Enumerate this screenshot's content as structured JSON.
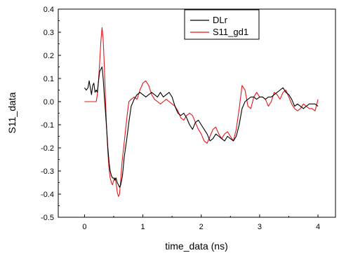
{
  "chart_data": {
    "type": "line",
    "xlabel": "time_data (ns)",
    "ylabel": "S11_data",
    "xlim": [
      -0.45,
      4.3
    ],
    "ylim": [
      -0.5,
      0.4
    ],
    "xticks": [
      0,
      1,
      2,
      3,
      4
    ],
    "yticks": [
      -0.5,
      -0.4,
      -0.3,
      -0.2,
      -0.1,
      0.0,
      0.1,
      0.2,
      0.3,
      0.4
    ],
    "xtick_labels": [
      "0",
      "1",
      "2",
      "3",
      "4"
    ],
    "ytick_labels": [
      "-0.5",
      "-0.4",
      "-0.3",
      "-0.2",
      "-0.1",
      "0.0",
      "0.1",
      "0.2",
      "0.3",
      "0.4"
    ],
    "grid": false,
    "legend_position": "top-right",
    "series": [
      {
        "name": "DLr",
        "color": "#000000",
        "x": [
          0.0,
          0.03,
          0.06,
          0.08,
          0.1,
          0.12,
          0.14,
          0.16,
          0.18,
          0.2,
          0.22,
          0.24,
          0.26,
          0.28,
          0.3,
          0.32,
          0.34,
          0.36,
          0.38,
          0.4,
          0.42,
          0.44,
          0.46,
          0.48,
          0.5,
          0.52,
          0.54,
          0.56,
          0.58,
          0.6,
          0.62,
          0.65,
          0.68,
          0.72,
          0.76,
          0.8,
          0.85,
          0.9,
          0.95,
          1.0,
          1.05,
          1.1,
          1.15,
          1.2,
          1.25,
          1.3,
          1.35,
          1.4,
          1.45,
          1.5,
          1.55,
          1.6,
          1.65,
          1.7,
          1.75,
          1.8,
          1.85,
          1.9,
          1.95,
          2.0,
          2.05,
          2.1,
          2.15,
          2.2,
          2.25,
          2.3,
          2.35,
          2.4,
          2.45,
          2.5,
          2.55,
          2.6,
          2.65,
          2.7,
          2.75,
          2.8,
          2.85,
          2.9,
          2.95,
          3.0,
          3.05,
          3.1,
          3.15,
          3.2,
          3.25,
          3.3,
          3.35,
          3.4,
          3.45,
          3.5,
          3.55,
          3.6,
          3.65,
          3.7,
          3.75,
          3.8,
          3.85,
          3.9,
          3.95,
          4.0
        ],
        "y": [
          0.06,
          0.05,
          0.06,
          0.09,
          0.06,
          0.03,
          0.07,
          0.08,
          0.04,
          0.05,
          0.04,
          0.09,
          0.13,
          0.14,
          0.15,
          0.1,
          0.02,
          -0.05,
          -0.12,
          -0.2,
          -0.26,
          -0.3,
          -0.32,
          -0.33,
          -0.33,
          -0.34,
          -0.33,
          -0.35,
          -0.36,
          -0.37,
          -0.36,
          -0.32,
          -0.24,
          -0.17,
          -0.09,
          -0.02,
          0.01,
          0.03,
          0.04,
          0.03,
          0.02,
          0.03,
          0.04,
          0.03,
          0.02,
          0.04,
          0.02,
          0.03,
          0.04,
          0.02,
          -0.02,
          -0.05,
          -0.06,
          -0.05,
          -0.07,
          -0.1,
          -0.12,
          -0.09,
          -0.08,
          -0.1,
          -0.12,
          -0.14,
          -0.17,
          -0.16,
          -0.14,
          -0.15,
          -0.16,
          -0.17,
          -0.15,
          -0.16,
          -0.17,
          -0.15,
          -0.1,
          -0.03,
          0.0,
          0.01,
          0.02,
          0.02,
          0.01,
          0.02,
          0.02,
          0.01,
          0.02,
          0.02,
          0.03,
          0.04,
          0.05,
          0.06,
          0.04,
          0.03,
          0.01,
          -0.02,
          -0.01,
          -0.02,
          -0.03,
          -0.02,
          -0.01,
          -0.01,
          -0.01,
          -0.02
        ]
      },
      {
        "name": "S11_gd1",
        "color": "#e8141c",
        "x": [
          0.0,
          0.1,
          0.2,
          0.22,
          0.24,
          0.26,
          0.28,
          0.3,
          0.32,
          0.34,
          0.36,
          0.38,
          0.4,
          0.42,
          0.44,
          0.46,
          0.48,
          0.5,
          0.52,
          0.54,
          0.56,
          0.58,
          0.6,
          0.62,
          0.64,
          0.67,
          0.7,
          0.73,
          0.76,
          0.8,
          0.85,
          0.9,
          0.95,
          1.0,
          1.05,
          1.1,
          1.15,
          1.2,
          1.25,
          1.3,
          1.35,
          1.4,
          1.45,
          1.5,
          1.55,
          1.6,
          1.65,
          1.7,
          1.75,
          1.8,
          1.85,
          1.9,
          1.95,
          2.0,
          2.05,
          2.1,
          2.15,
          2.2,
          2.25,
          2.3,
          2.35,
          2.4,
          2.45,
          2.5,
          2.55,
          2.6,
          2.65,
          2.7,
          2.75,
          2.8,
          2.85,
          2.9,
          2.95,
          3.0,
          3.05,
          3.1,
          3.15,
          3.2,
          3.25,
          3.3,
          3.35,
          3.4,
          3.45,
          3.5,
          3.55,
          3.6,
          3.65,
          3.7,
          3.75,
          3.8,
          3.85,
          3.9,
          3.95,
          4.0
        ],
        "y": [
          0.0,
          0.0,
          0.0,
          0.03,
          0.09,
          0.17,
          0.26,
          0.32,
          0.27,
          0.15,
          0.0,
          -0.12,
          -0.22,
          -0.29,
          -0.33,
          -0.35,
          -0.36,
          -0.34,
          -0.33,
          -0.35,
          -0.39,
          -0.41,
          -0.4,
          -0.34,
          -0.27,
          -0.2,
          -0.13,
          -0.06,
          0.0,
          0.01,
          0.02,
          0.01,
          0.05,
          0.08,
          0.09,
          0.07,
          0.03,
          0.01,
          0.0,
          -0.01,
          0.0,
          0.01,
          0.0,
          -0.01,
          -0.02,
          -0.04,
          -0.07,
          -0.08,
          -0.06,
          -0.05,
          -0.06,
          -0.09,
          -0.12,
          -0.14,
          -0.17,
          -0.18,
          -0.15,
          -0.12,
          -0.11,
          -0.14,
          -0.16,
          -0.14,
          -0.13,
          -0.15,
          -0.17,
          -0.12,
          -0.03,
          0.07,
          0.05,
          -0.02,
          -0.03,
          0.02,
          0.04,
          0.02,
          0.02,
          0.01,
          -0.02,
          0.0,
          0.04,
          0.03,
          0.01,
          0.04,
          0.05,
          0.02,
          -0.01,
          -0.03,
          -0.04,
          -0.03,
          -0.01,
          -0.02,
          -0.03,
          -0.03,
          -0.04,
          0.01
        ]
      }
    ]
  }
}
